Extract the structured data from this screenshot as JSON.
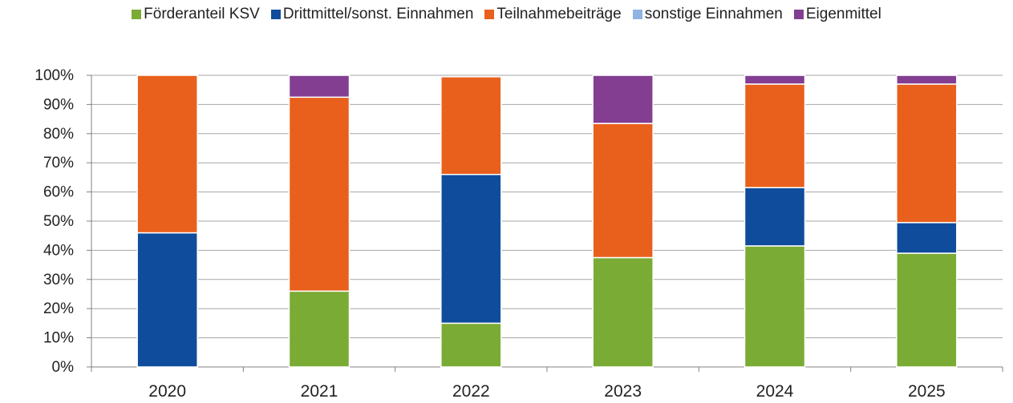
{
  "chart_data": {
    "type": "bar",
    "stacked": true,
    "title": "",
    "xlabel": "",
    "ylabel": "",
    "ylim": [
      0,
      100
    ],
    "y_ticks": [
      "0%",
      "10%",
      "20%",
      "30%",
      "40%",
      "50%",
      "60%",
      "70%",
      "80%",
      "90%",
      "100%"
    ],
    "grid": true,
    "legend_position": "top-center",
    "categories": [
      "2020",
      "2021",
      "2022",
      "2023",
      "2024",
      "2025"
    ],
    "series": [
      {
        "name": "Förderanteil KSV",
        "color": "#7aab35",
        "values": [
          0,
          26,
          15,
          37.5,
          41.5,
          39
        ]
      },
      {
        "name": "Drittmittel/sonst. Einnahmen",
        "color": "#0f4c9c",
        "values": [
          46,
          0,
          51,
          0,
          20,
          10.5
        ]
      },
      {
        "name": "Teilnahmebeiträge",
        "color": "#e8601c",
        "values": [
          54,
          66.5,
          33.5,
          46,
          35.5,
          47.5
        ]
      },
      {
        "name": "sonstige Einnahmen",
        "color": "#8eb4e3",
        "values": [
          0,
          0,
          0,
          0,
          0,
          0
        ]
      },
      {
        "name": "Eigenmittel",
        "color": "#833e92",
        "values": [
          0,
          7.5,
          0,
          16.5,
          3,
          3
        ]
      }
    ]
  }
}
